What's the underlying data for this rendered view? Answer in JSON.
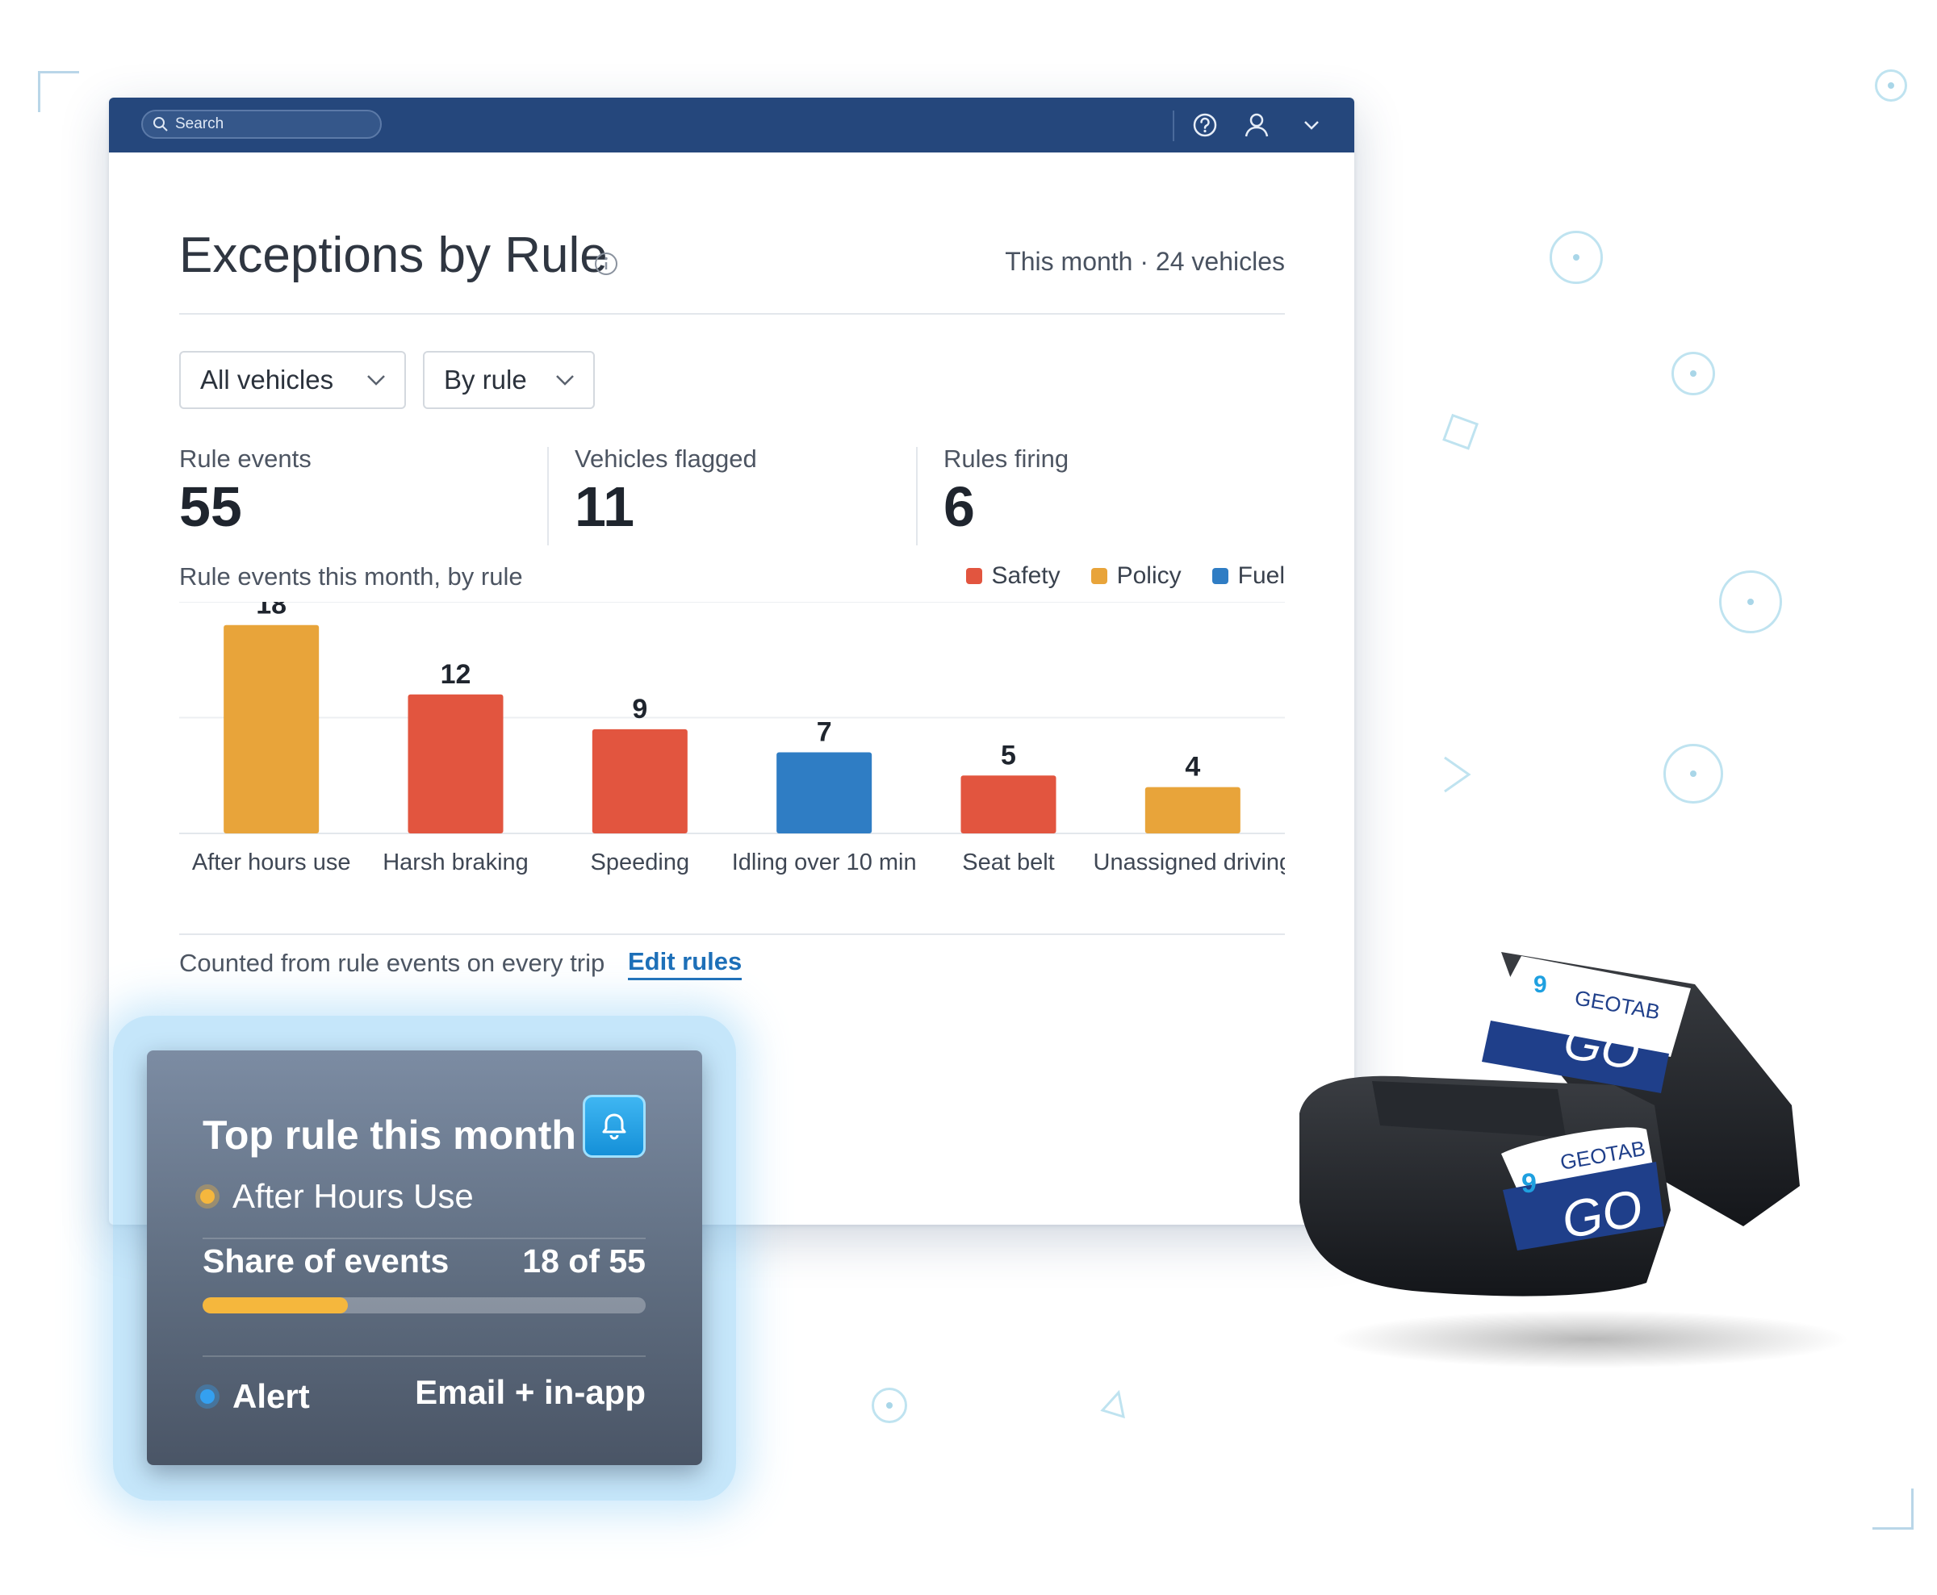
{
  "search": {
    "placeholder": "Search"
  },
  "header": {
    "help_icon": "help-circle-icon",
    "user_icon": "user-icon",
    "menu_icon": "chevron-down-icon"
  },
  "page": {
    "title": "Exceptions by Rule",
    "period": "This month · 24 vehicles",
    "filters": {
      "vehicles": "All vehicles",
      "grouping": "By rule"
    }
  },
  "kpis": [
    {
      "label": "Rule events",
      "value": "55"
    },
    {
      "label": "Vehicles flagged",
      "value": "11"
    },
    {
      "label": "Rules firing",
      "value": "6"
    }
  ],
  "chart_data": {
    "type": "bar",
    "title": "Rule events this month, by rule",
    "categories": [
      "After hours use",
      "Harsh braking",
      "Speeding",
      "Idling over 10 min",
      "Seat belt",
      "Unassigned driving"
    ],
    "values": [
      18,
      12,
      9,
      7,
      5,
      4
    ],
    "bar_groups": [
      "Policy",
      "Safety",
      "Safety",
      "Fuel",
      "Safety",
      "Policy"
    ],
    "legend": [
      {
        "name": "Safety",
        "color": "#e2553f"
      },
      {
        "name": "Policy",
        "color": "#e8a43a"
      },
      {
        "name": "Fuel",
        "color": "#2f7dc4"
      }
    ],
    "legend_position": "top-right",
    "grid": true,
    "ylim": [
      0,
      20
    ]
  },
  "footer": {
    "note": "Counted from rule events on every trip",
    "link": "Edit rules"
  },
  "card": {
    "title": "Top rule this month",
    "bell_icon": "bell-icon",
    "rule": "After Hours Use",
    "share_label": "Share of events",
    "share_value": "18 of 55",
    "share_fraction": 0.327,
    "alert_label": "Alert",
    "alert_value": "Email + in-app"
  },
  "device": {
    "brand": "GEOTAB",
    "model": "GO"
  },
  "colors": {
    "navy": "#25477c",
    "link": "#1d6fb8",
    "policy": "#e8a43a",
    "safety": "#e2553f",
    "fuel": "#2f7dc4"
  }
}
